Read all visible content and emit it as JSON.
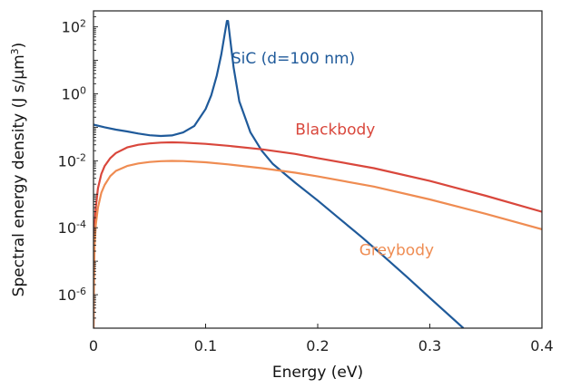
{
  "chart_data": {
    "type": "line",
    "title": "",
    "xlabel": "Energy (eV)",
    "ylabel": "Spectral energy density (J s/μm³)",
    "ylabel_parts": {
      "main": "Spectral energy density (J s/μm",
      "sup": "3",
      "close": ")"
    },
    "x_scale": "linear",
    "y_scale": "log",
    "xlim": [
      0,
      0.4
    ],
    "ylim": [
      1e-07,
      300
    ],
    "x_ticks": [
      0,
      0.1,
      0.2,
      0.3,
      0.4
    ],
    "x_tick_labels": [
      "0",
      "0.1",
      "0.2",
      "0.3",
      "0.4"
    ],
    "y_ticks": [
      1e-06,
      0.0001,
      0.01,
      1,
      100
    ],
    "y_tick_labels": [
      {
        "base": "10",
        "exp": "-6"
      },
      {
        "base": "10",
        "exp": "-4"
      },
      {
        "base": "10",
        "exp": "-2"
      },
      {
        "base": "10",
        "exp": "0"
      },
      {
        "base": "10",
        "exp": "2"
      }
    ],
    "grid": false,
    "series": [
      {
        "name": "SiC (d=100 nm)",
        "color": "#1f5a9a",
        "x": [
          0,
          0.01,
          0.02,
          0.03,
          0.04,
          0.05,
          0.06,
          0.07,
          0.08,
          0.09,
          0.1,
          0.105,
          0.11,
          0.114,
          0.117,
          0.119,
          0.12,
          0.122,
          0.125,
          0.13,
          0.14,
          0.15,
          0.16,
          0.18,
          0.2,
          0.22,
          0.24,
          0.26,
          0.28,
          0.3,
          0.33
        ],
        "values": [
          0.12,
          0.1,
          0.085,
          0.075,
          0.065,
          0.058,
          0.055,
          0.057,
          0.07,
          0.11,
          0.35,
          0.9,
          3.5,
          15,
          60,
          150,
          150,
          40,
          6,
          0.6,
          0.07,
          0.02,
          0.008,
          0.0022,
          0.00065,
          0.00018,
          5e-05,
          1.3e-05,
          3.3e-06,
          8e-07,
          1e-07
        ]
      },
      {
        "name": "Blackbody",
        "color": "#d9473c",
        "x": [
          0,
          0.0005,
          0.001,
          0.002,
          0.004,
          0.007,
          0.01,
          0.015,
          0.02,
          0.03,
          0.04,
          0.05,
          0.06,
          0.07,
          0.08,
          0.1,
          0.12,
          0.15,
          0.18,
          0.2,
          0.25,
          0.3,
          0.35,
          0.4
        ],
        "values": [
          1e-07,
          1e-05,
          0.0001,
          0.0004,
          0.0015,
          0.004,
          0.007,
          0.012,
          0.017,
          0.025,
          0.03,
          0.033,
          0.035,
          0.0355,
          0.035,
          0.032,
          0.028,
          0.022,
          0.016,
          0.012,
          0.006,
          0.0025,
          0.0009,
          0.0003
        ]
      },
      {
        "name": "Greybody",
        "color": "#ef8c52",
        "x": [
          0,
          0.0005,
          0.001,
          0.002,
          0.004,
          0.007,
          0.01,
          0.015,
          0.02,
          0.03,
          0.04,
          0.05,
          0.06,
          0.07,
          0.08,
          0.1,
          0.12,
          0.15,
          0.18,
          0.2,
          0.25,
          0.3,
          0.35,
          0.4
        ],
        "values": [
          1e-07,
          3e-06,
          3e-05,
          0.00012,
          0.0004,
          0.0011,
          0.0019,
          0.0035,
          0.005,
          0.007,
          0.0083,
          0.0092,
          0.0097,
          0.0099,
          0.0098,
          0.009,
          0.0078,
          0.006,
          0.0044,
          0.0034,
          0.0017,
          0.0007,
          0.00026,
          9e-05
        ]
      }
    ]
  }
}
